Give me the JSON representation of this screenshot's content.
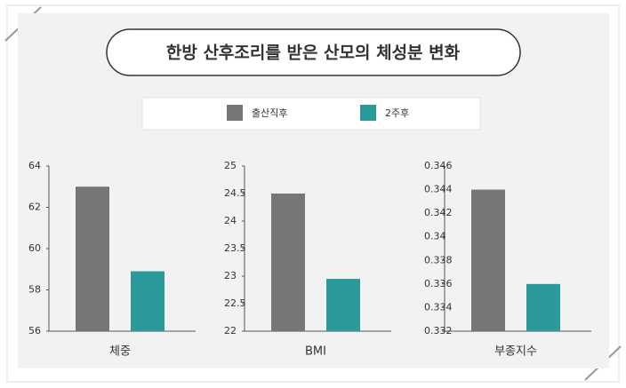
{
  "title": "한방 산후조리를 받은 산모의 체성분 변화",
  "legend": [
    {
      "name": "출산직후",
      "color": "#767676"
    },
    {
      "name": "2주후",
      "color": "#2a9a9a"
    }
  ],
  "chart_data": [
    {
      "type": "bar",
      "xlabel": "체중",
      "values": [
        63.0,
        58.9
      ],
      "ylim": [
        56,
        64
      ],
      "yticks": [
        56,
        58,
        60,
        62,
        64
      ]
    },
    {
      "type": "bar",
      "xlabel": "BMI",
      "values": [
        24.5,
        22.95
      ],
      "ylim": [
        22,
        25
      ],
      "yticks": [
        22,
        22.5,
        23,
        23.5,
        24,
        24.5,
        25
      ]
    },
    {
      "type": "bar",
      "xlabel": "부종지수",
      "values": [
        0.344,
        0.336
      ],
      "ylim": [
        0.332,
        0.346
      ],
      "yticks": [
        0.332,
        0.334,
        0.336,
        0.338,
        0.34,
        0.342,
        0.344,
        0.346
      ]
    }
  ]
}
